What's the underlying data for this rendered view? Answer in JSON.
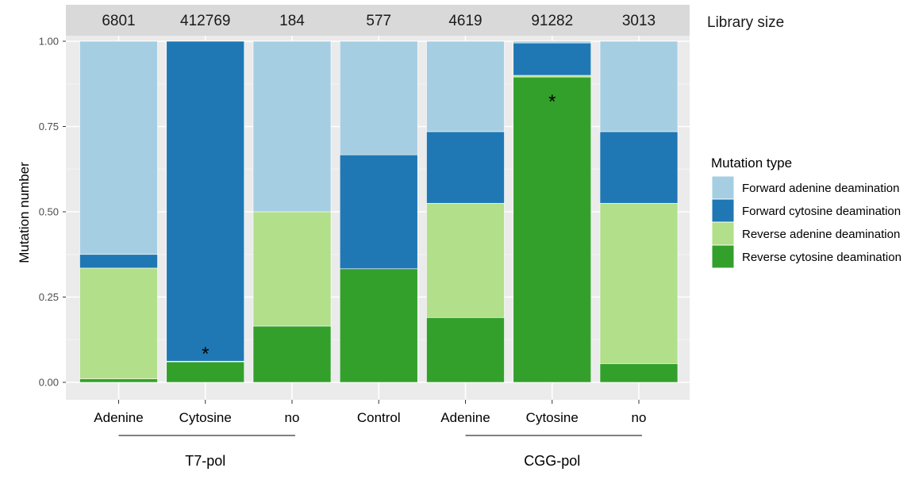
{
  "chart_data": {
    "type": "bar",
    "stacked": true,
    "ylabel": "Mutation number",
    "ylim": [
      0,
      1
    ],
    "yticks": [
      "0.00",
      "0.25",
      "0.50",
      "0.75",
      "1.00"
    ],
    "yticks_values": [
      0,
      0.25,
      0.5,
      0.75,
      1.0
    ],
    "grid": true,
    "categories": [
      "Adenine",
      "Cytosine",
      "no",
      "Control",
      "Adenine",
      "Cytosine",
      "no"
    ],
    "groups": [
      {
        "label": "T7-pol",
        "members": [
          0,
          1,
          2
        ]
      },
      {
        "label": "CGG-pol",
        "members": [
          4,
          5,
          6
        ]
      }
    ],
    "strip_title": "Library size",
    "library_sizes": [
      "6801",
      "412769",
      "184",
      "577",
      "4619",
      "91282",
      "3013"
    ],
    "series": [
      {
        "name": "Reverse cytosine deamination",
        "color": "#33a02c",
        "values": [
          0.01,
          0.06,
          0.165,
          0.333,
          0.19,
          0.895,
          0.055
        ]
      },
      {
        "name": "Reverse adenine deamination",
        "color": "#b2df8a",
        "values": [
          0.325,
          0.002,
          0.335,
          0.0,
          0.335,
          0.005,
          0.47
        ]
      },
      {
        "name": "Forward cytosine deamination",
        "color": "#1f78b4",
        "values": [
          0.04,
          0.938,
          0.0,
          0.334,
          0.21,
          0.095,
          0.21
        ]
      },
      {
        "name": "Forward adenine deamination",
        "color": "#a6cee3",
        "values": [
          0.625,
          0.0,
          0.5,
          0.333,
          0.265,
          0.005,
          0.265
        ]
      }
    ],
    "annotations": [
      {
        "text": "*",
        "category_index": 1,
        "y": 0.1
      },
      {
        "text": "*",
        "category_index": 5,
        "y": 0.84
      }
    ],
    "legend": {
      "title": "Mutation type",
      "position": "right",
      "items": [
        {
          "label": "Forward adenine deamination",
          "color": "#a6cee3"
        },
        {
          "label": "Forward cytosine deamination",
          "color": "#1f78b4"
        },
        {
          "label": "Reverse adenine deamination",
          "color": "#b2df8a"
        },
        {
          "label": "Reverse cytosine deamination",
          "color": "#33a02c"
        }
      ]
    }
  }
}
